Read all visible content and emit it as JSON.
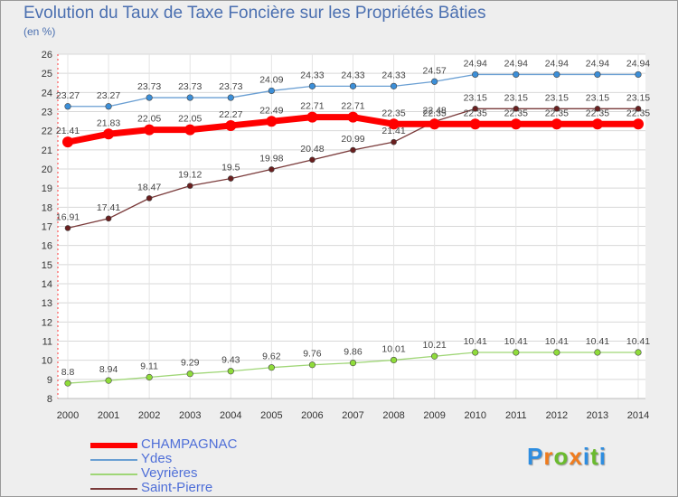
{
  "header": {
    "title": "Evolution du Taux de Taxe Foncière sur les Propriétés Bâties",
    "unit": "(en %)"
  },
  "logo": {
    "letters": [
      "P",
      "r",
      "o",
      "x",
      "i",
      "t",
      "i"
    ],
    "colors": [
      "#2e8de0",
      "#f07c1e",
      "#6abb2e",
      "#f07c1e",
      "#2e8de0",
      "#6abb2e",
      "#2e8de0"
    ]
  },
  "chart_data": {
    "type": "line",
    "title": "Evolution du Taux de Taxe Foncière sur les Propriétés Bâties",
    "ylabel": "(en %)",
    "xlabel": "",
    "ylim": [
      8,
      26
    ],
    "yticks": [
      "8",
      "9",
      "10",
      "11",
      "12",
      "13",
      "14",
      "15",
      "16",
      "17",
      "18",
      "19",
      "20",
      "21",
      "22",
      "23",
      "24",
      "25",
      "26"
    ],
    "categories": [
      "2000",
      "2001",
      "2002",
      "2003",
      "2004",
      "2005",
      "2006",
      "2007",
      "2008",
      "2009",
      "2010",
      "2011",
      "2012",
      "2013",
      "2014"
    ],
    "series": [
      {
        "name": "Ydes",
        "color": "#6a9fd3",
        "marker": "#3c8fd8",
        "width": 1.3,
        "markerRadius": 3.3,
        "values": [
          23.27,
          23.27,
          23.73,
          23.73,
          23.73,
          24.09,
          24.33,
          24.33,
          24.33,
          24.57,
          24.94,
          24.94,
          24.94,
          24.94,
          24.94
        ],
        "labels": [
          "23.27",
          "23.27",
          "23.73",
          "23.73",
          "23.73",
          "24.09",
          "24.33",
          "24.33",
          "24.33",
          "24.57",
          "24.94",
          "24.94",
          "24.94",
          "24.94",
          "24.94"
        ]
      },
      {
        "name": "Veyrières",
        "color": "#9fd676",
        "marker": "#8fdc3a",
        "width": 1.3,
        "markerRadius": 3.3,
        "values": [
          8.8,
          8.94,
          9.11,
          9.29,
          9.43,
          9.62,
          9.76,
          9.86,
          10.01,
          10.21,
          10.41,
          10.41,
          10.41,
          10.41,
          10.41
        ],
        "labels": [
          "8.8",
          "8.94",
          "9.11",
          "9.29",
          "9.43",
          "9.62",
          "9.76",
          "9.86",
          "10.01",
          "10.21",
          "10.41",
          "10.41",
          "10.41",
          "10.41",
          "10.41"
        ]
      },
      {
        "name": "Saint-Pierre",
        "color": "#7a3a3a",
        "marker": "#6a1f1f",
        "width": 1.3,
        "markerRadius": 3.0,
        "values": [
          16.91,
          17.41,
          18.47,
          19.12,
          19.5,
          19.98,
          20.48,
          20.99,
          21.41,
          22.48,
          23.15,
          23.15,
          23.15,
          23.15,
          23.15
        ],
        "labels": [
          "16.91",
          "17.41",
          "18.47",
          "19.12",
          "19.5",
          "19.98",
          "20.48",
          "20.99",
          "21.41",
          "22.48",
          "23.15",
          "23.15",
          "23.15",
          "23.15",
          "23.15"
        ]
      },
      {
        "name": "CHAMPAGNAC",
        "color": "#ff0000",
        "marker": "#ff0000",
        "width": 7,
        "markerRadius": 6,
        "values": [
          21.41,
          21.83,
          22.05,
          22.05,
          22.27,
          22.49,
          22.71,
          22.71,
          22.35,
          22.35,
          22.35,
          22.35,
          22.35,
          22.35,
          22.35
        ],
        "labels": [
          "21.41",
          "21.83",
          "22.05",
          "22.05",
          "22.27",
          "22.49",
          "22.71",
          "22.71",
          "22.35",
          "22.35",
          "22.35",
          "22.35",
          "22.35",
          "22.35",
          "22.35"
        ]
      }
    ],
    "legend": [
      "CHAMPAGNAC",
      "Ydes",
      "Veyrières",
      "Saint-Pierre"
    ]
  }
}
